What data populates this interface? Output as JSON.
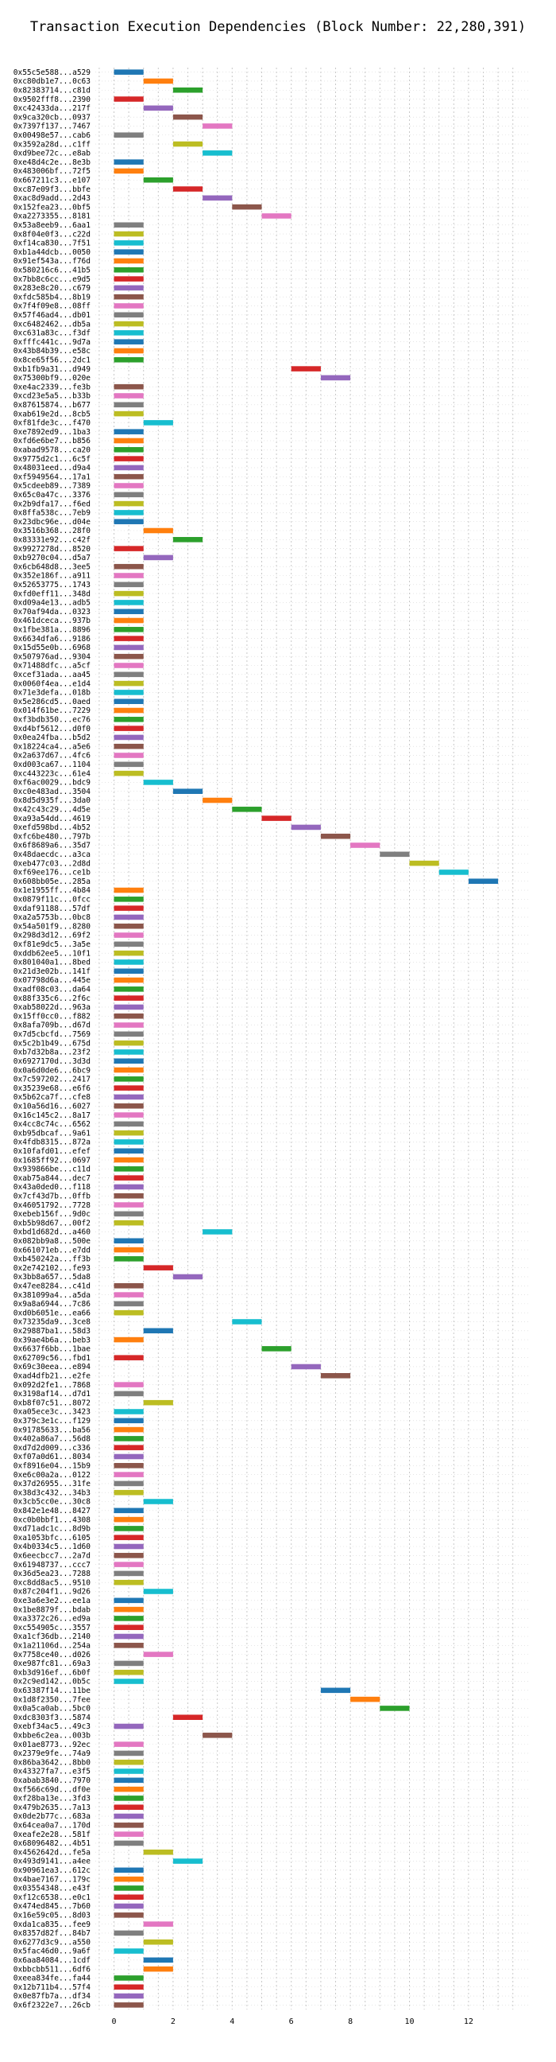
{
  "chart_data": {
    "type": "bar",
    "orientation": "horizontal",
    "title": "Transaction Execution Dependencies (Block Number: 22,280,391)",
    "xlabel": "",
    "ylabel": "",
    "xlim": [
      -0.5,
      13.7
    ],
    "xticks": [
      0,
      2,
      4,
      6,
      8,
      10,
      12
    ],
    "grid": true,
    "bar_width": 1,
    "palette": [
      "#1f77b4",
      "#ff7f0e",
      "#2ca02c",
      "#d62728",
      "#9467bd",
      "#8c564b",
      "#e377c2",
      "#7f7f7f",
      "#bcbd22",
      "#17becf"
    ],
    "rows": [
      {
        "label": "0x55c5e588...a529",
        "start": 0
      },
      {
        "label": "0xc80db1e7...0c63",
        "start": 1
      },
      {
        "label": "0x82383714...c81d",
        "start": 2
      },
      {
        "label": "0x9502fff8...2390",
        "start": 0
      },
      {
        "label": "0xc42433da...217f",
        "start": 1
      },
      {
        "label": "0x9ca320cb...0937",
        "start": 2
      },
      {
        "label": "0x7397f137...7467",
        "start": 3
      },
      {
        "label": "0x00498e57...cab6",
        "start": 0
      },
      {
        "label": "0x3592a28d...c1ff",
        "start": 2
      },
      {
        "label": "0xd9bee72c...e8ab",
        "start": 3
      },
      {
        "label": "0xe48d4c2e...8e3b",
        "start": 0
      },
      {
        "label": "0x483006bf...72f5",
        "start": 0
      },
      {
        "label": "0x667211c3...e107",
        "start": 1
      },
      {
        "label": "0xc87e09f3...bbfe",
        "start": 2
      },
      {
        "label": "0xac8d9add...2d43",
        "start": 3
      },
      {
        "label": "0x152fea23...0bf5",
        "start": 4
      },
      {
        "label": "0xa2273355...8181",
        "start": 5
      },
      {
        "label": "0x53a8eeb9...6aa1",
        "start": 0
      },
      {
        "label": "0x8f04e0f3...c22d",
        "start": 0
      },
      {
        "label": "0xf14ca830...7f51",
        "start": 0
      },
      {
        "label": "0xb1a44dcb...0050",
        "start": 0
      },
      {
        "label": "0x91ef543a...f76d",
        "start": 0
      },
      {
        "label": "0x580216c6...41b5",
        "start": 0
      },
      {
        "label": "0x7bb8c6cc...e9d5",
        "start": 0
      },
      {
        "label": "0x283e8c20...c679",
        "start": 0
      },
      {
        "label": "0xfdc585b4...8b19",
        "start": 0
      },
      {
        "label": "0x7f4f09e8...08ff",
        "start": 0
      },
      {
        "label": "0x57f46ad4...db01",
        "start": 0
      },
      {
        "label": "0xc6482462...db5a",
        "start": 0
      },
      {
        "label": "0xc631a83c...f3df",
        "start": 0
      },
      {
        "label": "0xfffc441c...9d7a",
        "start": 0
      },
      {
        "label": "0x43b84b39...e58c",
        "start": 0
      },
      {
        "label": "0x8ce65f56...2dc1",
        "start": 0
      },
      {
        "label": "0xb1fb9a31...d949",
        "start": 6
      },
      {
        "label": "0x75300bf9...020e",
        "start": 7
      },
      {
        "label": "0xe4ac2339...fe3b",
        "start": 0
      },
      {
        "label": "0xcd23e5a5...b33b",
        "start": 0
      },
      {
        "label": "0x87615874...b677",
        "start": 0
      },
      {
        "label": "0xab619e2d...8cb5",
        "start": 0
      },
      {
        "label": "0xf81fde3c...f470",
        "start": 1
      },
      {
        "label": "0xe7892ed9...1ba3",
        "start": 0
      },
      {
        "label": "0xfd6e6be7...b856",
        "start": 0
      },
      {
        "label": "0xabad9578...ca20",
        "start": 0
      },
      {
        "label": "0x9775d2c1...6c5f",
        "start": 0
      },
      {
        "label": "0x48031eed...d9a4",
        "start": 0
      },
      {
        "label": "0xf5949564...17a1",
        "start": 0
      },
      {
        "label": "0x5cdeeb89...7389",
        "start": 0
      },
      {
        "label": "0x65c0a47c...3376",
        "start": 0
      },
      {
        "label": "0x2b9dfa17...f6ed",
        "start": 0
      },
      {
        "label": "0x8ffa538c...7eb9",
        "start": 0
      },
      {
        "label": "0x23dbc96e...d04e",
        "start": 0
      },
      {
        "label": "0x3516b368...28f0",
        "start": 1
      },
      {
        "label": "0x83331e92...c42f",
        "start": 2
      },
      {
        "label": "0x9927278d...8520",
        "start": 0
      },
      {
        "label": "0xb9270c04...d5a7",
        "start": 1
      },
      {
        "label": "0x6cb648d8...3ee5",
        "start": 0
      },
      {
        "label": "0x352e186f...a911",
        "start": 0
      },
      {
        "label": "0x52653775...1743",
        "start": 0
      },
      {
        "label": "0xfd0eff11...348d",
        "start": 0
      },
      {
        "label": "0xd09a4e13...adb5",
        "start": 0
      },
      {
        "label": "0x70af94da...0323",
        "start": 0
      },
      {
        "label": "0x461dceca...937b",
        "start": 0
      },
      {
        "label": "0x1fbe381a...8896",
        "start": 0
      },
      {
        "label": "0x6634dfa6...9186",
        "start": 0
      },
      {
        "label": "0x15d55e0b...6968",
        "start": 0
      },
      {
        "label": "0x507976ad...9304",
        "start": 0
      },
      {
        "label": "0x71488dfc...a5cf",
        "start": 0
      },
      {
        "label": "0xcef31ada...aa45",
        "start": 0
      },
      {
        "label": "0x0060f4ea...e1d4",
        "start": 0
      },
      {
        "label": "0x71e3defa...018b",
        "start": 0
      },
      {
        "label": "0x5e286cd5...0aed",
        "start": 0
      },
      {
        "label": "0x014f61be...7229",
        "start": 0
      },
      {
        "label": "0xf3bdb350...ec76",
        "start": 0
      },
      {
        "label": "0xd4bf5612...d0f0",
        "start": 0
      },
      {
        "label": "0x0ea24fba...b5d2",
        "start": 0
      },
      {
        "label": "0x18224ca4...a5e6",
        "start": 0
      },
      {
        "label": "0x2a637d67...4fc6",
        "start": 0
      },
      {
        "label": "0xd003ca67...1104",
        "start": 0
      },
      {
        "label": "0xc443223c...61e4",
        "start": 0
      },
      {
        "label": "0xf6ac0029...bdc9",
        "start": 1
      },
      {
        "label": "0xc0e483ad...3504",
        "start": 2
      },
      {
        "label": "0x8d5d935f...3da0",
        "start": 3
      },
      {
        "label": "0x42c43c29...4d5e",
        "start": 4
      },
      {
        "label": "0xa93a54dd...4619",
        "start": 5
      },
      {
        "label": "0xefd598bd...4b52",
        "start": 6
      },
      {
        "label": "0xfc6be480...797b",
        "start": 7
      },
      {
        "label": "0x6f8689a6...35d7",
        "start": 8
      },
      {
        "label": "0x48daecdc...a3ca",
        "start": 9
      },
      {
        "label": "0xeb477c03...2d8d",
        "start": 10
      },
      {
        "label": "0xf69ee176...ce1b",
        "start": 11
      },
      {
        "label": "0x608bb05e...285a",
        "start": 12
      },
      {
        "label": "0x1e1955ff...4b84",
        "start": 0
      },
      {
        "label": "0x0879f11c...0fcc",
        "start": 0
      },
      {
        "label": "0xdaf91188...57df",
        "start": 0
      },
      {
        "label": "0xa2a5753b...0bc8",
        "start": 0
      },
      {
        "label": "0x54a501f9...8280",
        "start": 0
      },
      {
        "label": "0x298d3d12...69f2",
        "start": 0
      },
      {
        "label": "0xf81e9dc5...3a5e",
        "start": 0
      },
      {
        "label": "0xddb62ee5...10f1",
        "start": 0
      },
      {
        "label": "0x801040a1...8bed",
        "start": 0
      },
      {
        "label": "0x21d3e02b...141f",
        "start": 0
      },
      {
        "label": "0x07798d6a...445e",
        "start": 0
      },
      {
        "label": "0xadf08c03...da64",
        "start": 0
      },
      {
        "label": "0x88f335c6...2f6c",
        "start": 0
      },
      {
        "label": "0xab58022d...963a",
        "start": 0
      },
      {
        "label": "0x15ff0cc0...f882",
        "start": 0
      },
      {
        "label": "0x8afa709b...d67d",
        "start": 0
      },
      {
        "label": "0x7d5cbcfd...7569",
        "start": 0
      },
      {
        "label": "0x5c2b1b49...675d",
        "start": 0
      },
      {
        "label": "0xb7d32b8a...23f2",
        "start": 0
      },
      {
        "label": "0x6927170d...3d3d",
        "start": 0
      },
      {
        "label": "0x0a6d0de6...6bc9",
        "start": 0
      },
      {
        "label": "0x7c597202...2417",
        "start": 0
      },
      {
        "label": "0x35239e68...e6f6",
        "start": 0
      },
      {
        "label": "0x5b62ca7f...cfe8",
        "start": 0
      },
      {
        "label": "0x10a56d16...6027",
        "start": 0
      },
      {
        "label": "0x16c145c2...8a17",
        "start": 0
      },
      {
        "label": "0x4cc8c74c...6562",
        "start": 0
      },
      {
        "label": "0xb95dbcaf...9a61",
        "start": 0
      },
      {
        "label": "0x4fdb8315...872a",
        "start": 0
      },
      {
        "label": "0x10fafd01...efef",
        "start": 0
      },
      {
        "label": "0x1685ff92...0697",
        "start": 0
      },
      {
        "label": "0x939866be...c11d",
        "start": 0
      },
      {
        "label": "0xab75a844...dec7",
        "start": 0
      },
      {
        "label": "0x43a0ded0...f118",
        "start": 0
      },
      {
        "label": "0x7cf43d7b...0ffb",
        "start": 0
      },
      {
        "label": "0x46051792...7728",
        "start": 0
      },
      {
        "label": "0xebeb156f...9d0c",
        "start": 0
      },
      {
        "label": "0xb5b98d67...00f2",
        "start": 0
      },
      {
        "label": "0xbd1d682d...a460",
        "start": 3
      },
      {
        "label": "0x082bb9a8...500e",
        "start": 0
      },
      {
        "label": "0x661071eb...e7dd",
        "start": 0
      },
      {
        "label": "0xb450242a...ff3b",
        "start": 0
      },
      {
        "label": "0x2e742102...fe93",
        "start": 1
      },
      {
        "label": "0x3bb8a657...5da8",
        "start": 2
      },
      {
        "label": "0x47ee8284...c41d",
        "start": 0
      },
      {
        "label": "0x381099a4...a5da",
        "start": 0
      },
      {
        "label": "0x9a8a6944...7c86",
        "start": 0
      },
      {
        "label": "0xd0b6051e...ea66",
        "start": 0
      },
      {
        "label": "0x73235da9...3ce8",
        "start": 4
      },
      {
        "label": "0x29887ba1...58d3",
        "start": 1
      },
      {
        "label": "0x39ae4b6a...beb3",
        "start": 0
      },
      {
        "label": "0x6637f6bb...1bae",
        "start": 5
      },
      {
        "label": "0x62709c56...fbd1",
        "start": 0
      },
      {
        "label": "0x69c30eea...e894",
        "start": 6
      },
      {
        "label": "0xad4dfb21...e2fe",
        "start": 7
      },
      {
        "label": "0x092d2fe1...7868",
        "start": 0
      },
      {
        "label": "0x3198af14...d7d1",
        "start": 0
      },
      {
        "label": "0xb8f07c51...8072",
        "start": 1
      },
      {
        "label": "0xa05ece3c...3423",
        "start": 0
      },
      {
        "label": "0x379c3e1c...f129",
        "start": 0
      },
      {
        "label": "0x91785633...ba56",
        "start": 0
      },
      {
        "label": "0x402a86a7...56d8",
        "start": 0
      },
      {
        "label": "0xd7d2d009...c336",
        "start": 0
      },
      {
        "label": "0xf07a0d61...8034",
        "start": 0
      },
      {
        "label": "0xf8916e04...15b9",
        "start": 0
      },
      {
        "label": "0xe6c00a2a...0122",
        "start": 0
      },
      {
        "label": "0x37d26955...31fe",
        "start": 0
      },
      {
        "label": "0x38d3c432...34b3",
        "start": 0
      },
      {
        "label": "0x3cb5cc0e...30c8",
        "start": 1
      },
      {
        "label": "0x842e1e48...8427",
        "start": 0
      },
      {
        "label": "0xc0b0bbf1...4308",
        "start": 0
      },
      {
        "label": "0xd71adc1c...8d9b",
        "start": 0
      },
      {
        "label": "0xa1053bfc...6105",
        "start": 0
      },
      {
        "label": "0x4b0334c5...1d60",
        "start": 0
      },
      {
        "label": "0x6eecbcc7...2a7d",
        "start": 0
      },
      {
        "label": "0x61948737...ccc7",
        "start": 0
      },
      {
        "label": "0x36d5ea23...7288",
        "start": 0
      },
      {
        "label": "0xc8dd8ac5...9510",
        "start": 0
      },
      {
        "label": "0x87c204f1...9d26",
        "start": 1
      },
      {
        "label": "0xe3a6e3e2...ee1a",
        "start": 0
      },
      {
        "label": "0x1be8879f...bdab",
        "start": 0
      },
      {
        "label": "0xa3372c26...ed9a",
        "start": 0
      },
      {
        "label": "0xc554905c...3557",
        "start": 0
      },
      {
        "label": "0xa1cf36db...2140",
        "start": 0
      },
      {
        "label": "0x1a21106d...254a",
        "start": 0
      },
      {
        "label": "0x7758ce40...d026",
        "start": 1
      },
      {
        "label": "0xe987fc81...69a3",
        "start": 0
      },
      {
        "label": "0xb3d916ef...6b0f",
        "start": 0
      },
      {
        "label": "0x2c9ed142...0b5c",
        "start": 0
      },
      {
        "label": "0x63387f14...11be",
        "start": 7
      },
      {
        "label": "0x1d8f2350...7fee",
        "start": 8
      },
      {
        "label": "0x0a5ca0ab...5bc0",
        "start": 9
      },
      {
        "label": "0xdc8303f3...5874",
        "start": 2
      },
      {
        "label": "0xebf34ac5...49c3",
        "start": 0
      },
      {
        "label": "0xbbe6c2ea...003b",
        "start": 3
      },
      {
        "label": "0x01ae8773...92ec",
        "start": 0
      },
      {
        "label": "0x2379e9fe...74a9",
        "start": 0
      },
      {
        "label": "0x86ba3642...8bb0",
        "start": 0
      },
      {
        "label": "0x43327fa7...e3f5",
        "start": 0
      },
      {
        "label": "0xabab3840...7970",
        "start": 0
      },
      {
        "label": "0xf566c69d...df0e",
        "start": 0
      },
      {
        "label": "0xf28ba13e...3fd3",
        "start": 0
      },
      {
        "label": "0x479b2635...7a13",
        "start": 0
      },
      {
        "label": "0x0de2b77c...683a",
        "start": 0
      },
      {
        "label": "0x64cea0a7...170d",
        "start": 0
      },
      {
        "label": "0xeafe2e28...581f",
        "start": 0
      },
      {
        "label": "0x68096482...4b51",
        "start": 0
      },
      {
        "label": "0x4562642d...fe5a",
        "start": 1
      },
      {
        "label": "0x493d9141...a4ee",
        "start": 2
      },
      {
        "label": "0x90961ea3...612c",
        "start": 0
      },
      {
        "label": "0x4bae7167...179c",
        "start": 0
      },
      {
        "label": "0x03554348...e43f",
        "start": 0
      },
      {
        "label": "0xf12c6538...e0c1",
        "start": 0
      },
      {
        "label": "0x474ed845...7b60",
        "start": 0
      },
      {
        "label": "0x16e59c05...8d03",
        "start": 0
      },
      {
        "label": "0xda1ca835...fee9",
        "start": 1
      },
      {
        "label": "0x8357d82f...84b7",
        "start": 0
      },
      {
        "label": "0x6277d3c9...a550",
        "start": 1
      },
      {
        "label": "0x5fac46d0...9a6f",
        "start": 0
      },
      {
        "label": "0x6aa84084...1cdf",
        "start": 1
      },
      {
        "label": "0xbbcbb511...6df6",
        "start": 1
      },
      {
        "label": "0xeea834fe...fa44",
        "start": 0
      },
      {
        "label": "0x12b711b4...57f4",
        "start": 0
      },
      {
        "label": "0x0e87fb7a...df34",
        "start": 0
      },
      {
        "label": "0x6f2322e7...26cb",
        "start": 0
      }
    ]
  }
}
